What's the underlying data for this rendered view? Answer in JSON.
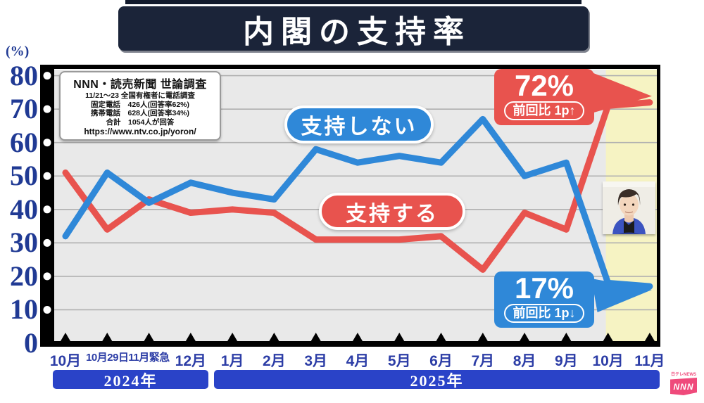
{
  "title": "内閣の支持率",
  "y_axis": {
    "unit": "(%)"
  },
  "source_box": {
    "lines": [
      "NNN・読売新聞 世論調査",
      "11/21～23 全国有権者に電話調査",
      "固定電話　426人(回答率62%)",
      "携帯電話　628人(回答率34%)",
      "合計　1054人が回答",
      "https://www.ntv.co.jp/yoron/"
    ]
  },
  "series_labels": {
    "approve": "支持する",
    "disapprove": "支持しない"
  },
  "callouts": {
    "approve": {
      "value": "72%",
      "delta": "前回比 1p↑"
    },
    "disapprove": {
      "value": "17%",
      "delta": "前回比 1p↓"
    }
  },
  "footer": {
    "years": [
      "2024年",
      "2025年"
    ],
    "logo_small": "日テレNEWS",
    "logo_text": "NNN"
  },
  "colors": {
    "approve": "#e8534e",
    "disapprove": "#2f88d8",
    "title_bg": "#1b2439",
    "axis_label": "#203a94",
    "x_label": "#2c3da6",
    "year_bar": "#2a43c8",
    "plot_bg": "#e9e9e9",
    "grid": "#b0b0b0",
    "highlight": "#f6f3c3",
    "logo_pink": "#ef4a7b",
    "frame": "#000000"
  },
  "chart_data": {
    "type": "line",
    "title": "内閣の支持率",
    "categories": [
      "10月",
      "10月29日",
      "11月緊急",
      "12月",
      "1月",
      "2月",
      "3月",
      "4月",
      "5月",
      "6月",
      "7月",
      "8月",
      "9月",
      "10月",
      "11月"
    ],
    "category_years": [
      "2024",
      "2024",
      "2024",
      "2024",
      "2025",
      "2025",
      "2025",
      "2025",
      "2025",
      "2025",
      "2025",
      "2025",
      "2025",
      "2025",
      "2025"
    ],
    "series": [
      {
        "name": "支持する",
        "color": "#e8534e",
        "values": [
          51,
          34,
          43,
          39,
          40,
          39,
          31,
          31,
          31,
          32,
          22,
          39,
          34,
          71,
          72
        ]
      },
      {
        "name": "支持しない",
        "color": "#2f88d8",
        "values": [
          32,
          51,
          42,
          48,
          45,
          43,
          58,
          54,
          56,
          54,
          67,
          50,
          54,
          18,
          17
        ]
      }
    ],
    "ylabel": "(%)",
    "ylim": [
      0,
      80
    ],
    "y_ticks": [
      0,
      10,
      20,
      30,
      40,
      50,
      60,
      70,
      80
    ],
    "grid": true,
    "legend_position": "inline-labels",
    "highlight": {
      "from_index": 13,
      "to_index": 14,
      "color": "#f6f3c3"
    }
  }
}
